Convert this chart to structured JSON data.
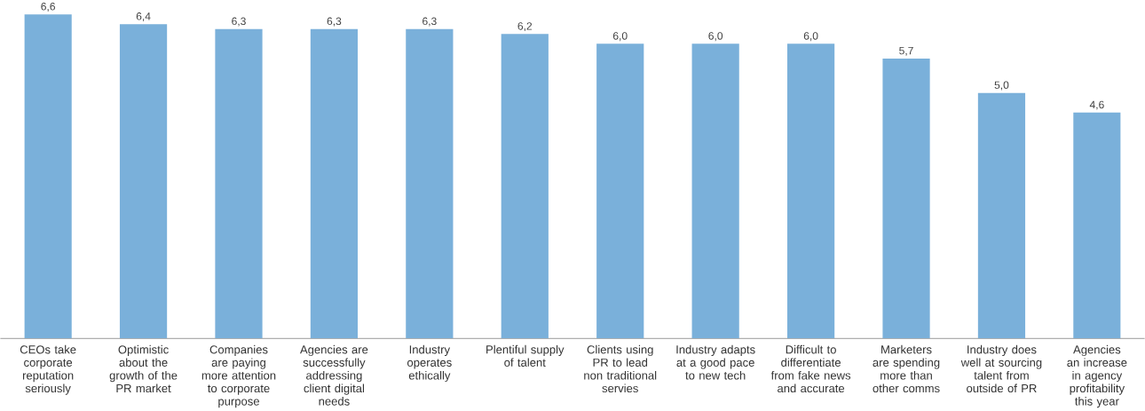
{
  "chart_data": {
    "type": "bar",
    "categories": [
      "CEOs take corporate reputation seriously",
      "Optimistic about the growth of the PR market",
      "Companies are paying more attention to corporate purpose",
      "Agencies are successfully addressing client digital needs",
      "Industry operates ethically",
      "Plentiful supply of talent",
      "Clients using PR to lead non traditional servies",
      "Industry adapts at a good pace to new tech",
      "Difficult to differentiate from fake news and accurate",
      "Marketers are spending more than other comms",
      "Industry does well at sourcing talent from outside of PR",
      "Agencies an increase in agency profitability this year"
    ],
    "values": [
      6.6,
      6.4,
      6.3,
      6.3,
      6.3,
      6.2,
      6.0,
      6.0,
      6.0,
      5.7,
      5.0,
      4.6
    ],
    "value_labels": [
      "6,6",
      "6,4",
      "6,3",
      "6,3",
      "6,3",
      "6,2",
      "6,0",
      "6,0",
      "6,0",
      "5,7",
      "5,0",
      "4,6"
    ],
    "color": "#7ab0da",
    "tick_labels": "x",
    "grid": false
  }
}
